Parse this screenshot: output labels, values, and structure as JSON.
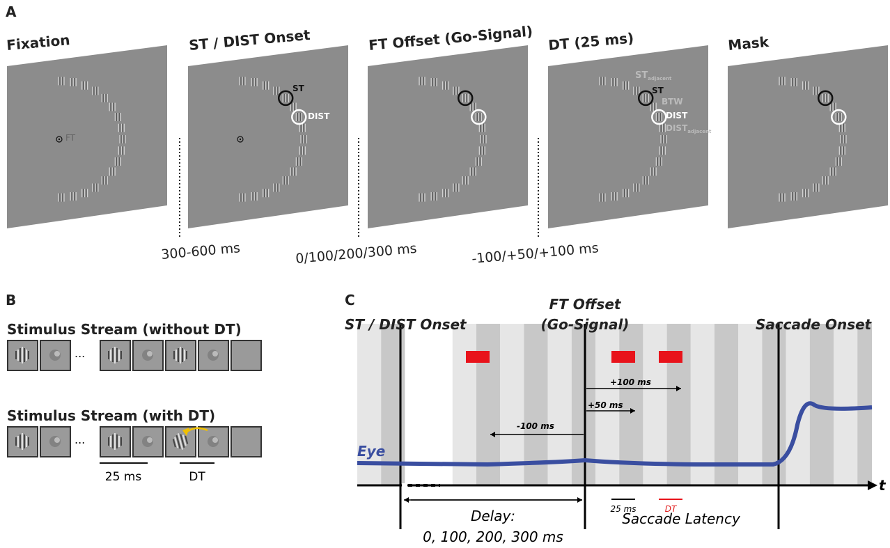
{
  "panel_a": {
    "label": "A",
    "frames": [
      {
        "title": "Fixation"
      },
      {
        "title": "ST / DIST Onset"
      },
      {
        "title": "FT Offset (Go-Signal)"
      },
      {
        "title": "DT (25 ms)"
      },
      {
        "title": "Mask"
      }
    ],
    "marks": {
      "ft": "FT",
      "st": "ST",
      "dist": "DIST",
      "st_adjacent": "ST",
      "adjacent_1": "adjacent",
      "btw": "BTW",
      "dist_adjacent": "DIST",
      "adjacent_2": "adjacent"
    },
    "intervals": [
      "300-600 ms",
      "0/100/200/300 ms",
      "-100/+50/+100 ms"
    ]
  },
  "panel_b": {
    "label": "B",
    "stream_1": "Stimulus Stream (without DT)",
    "stream_2": "Stimulus Stream (with DT)",
    "ellipsis": "...",
    "duration": "25 ms",
    "dt": "DT"
  },
  "panel_c": {
    "label": "C",
    "st_dist_onset": "ST / DIST Onset",
    "ft_offset": "FT Offset",
    "go_signal": "(Go-Signal)",
    "saccade_onset": "Saccade Onset",
    "eye": "Eye",
    "time": "t",
    "plus_100": "+100 ms",
    "plus_50": "+50 ms",
    "minus_100": "-100 ms",
    "bar_25": "25 ms",
    "bar_dt": "DT",
    "delay": "Delay:",
    "delays": "0, 100, 200, 300 ms",
    "latency": "Saccade Latency"
  }
}
